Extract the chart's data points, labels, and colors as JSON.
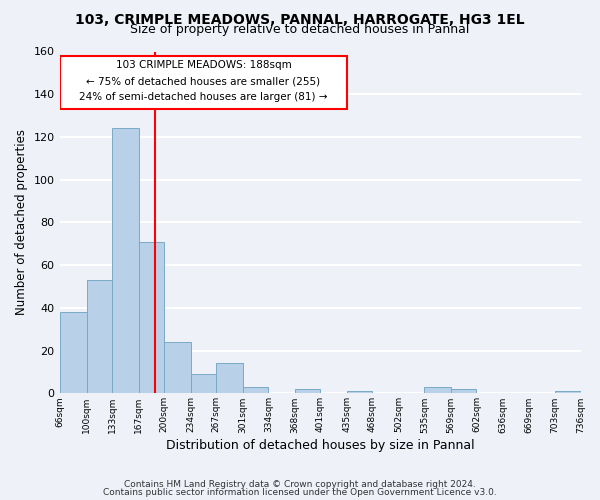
{
  "title": "103, CRIMPLE MEADOWS, PANNAL, HARROGATE, HG3 1EL",
  "subtitle": "Size of property relative to detached houses in Pannal",
  "xlabel": "Distribution of detached houses by size in Pannal",
  "ylabel": "Number of detached properties",
  "bar_edges": [
    66,
    100,
    133,
    167,
    200,
    234,
    267,
    301,
    334,
    368,
    401,
    435,
    468,
    502,
    535,
    569,
    602,
    636,
    669,
    703,
    736
  ],
  "bar_heights": [
    38,
    53,
    124,
    71,
    24,
    9,
    14,
    3,
    0,
    2,
    0,
    1,
    0,
    0,
    3,
    2,
    0,
    0,
    0,
    1
  ],
  "bar_color": "#b8d0e8",
  "bar_edgecolor": "#7aaac8",
  "vline_x": 188,
  "vline_color": "red",
  "ylim": [
    0,
    160
  ],
  "yticks": [
    0,
    20,
    40,
    60,
    80,
    100,
    120,
    140,
    160
  ],
  "ann_line1": "103 CRIMPLE MEADOWS: 188sqm",
  "ann_line2": "← 75% of detached houses are smaller (255)",
  "ann_line3": "24% of semi-detached houses are larger (81) →",
  "footer_line1": "Contains HM Land Registry data © Crown copyright and database right 2024.",
  "footer_line2": "Contains public sector information licensed under the Open Government Licence v3.0.",
  "bg_color": "#eef2f8",
  "grid_color": "white",
  "tick_labels": [
    "66sqm",
    "100sqm",
    "133sqm",
    "167sqm",
    "200sqm",
    "234sqm",
    "267sqm",
    "301sqm",
    "334sqm",
    "368sqm",
    "401sqm",
    "435sqm",
    "468sqm",
    "502sqm",
    "535sqm",
    "569sqm",
    "602sqm",
    "636sqm",
    "669sqm",
    "703sqm",
    "736sqm"
  ]
}
